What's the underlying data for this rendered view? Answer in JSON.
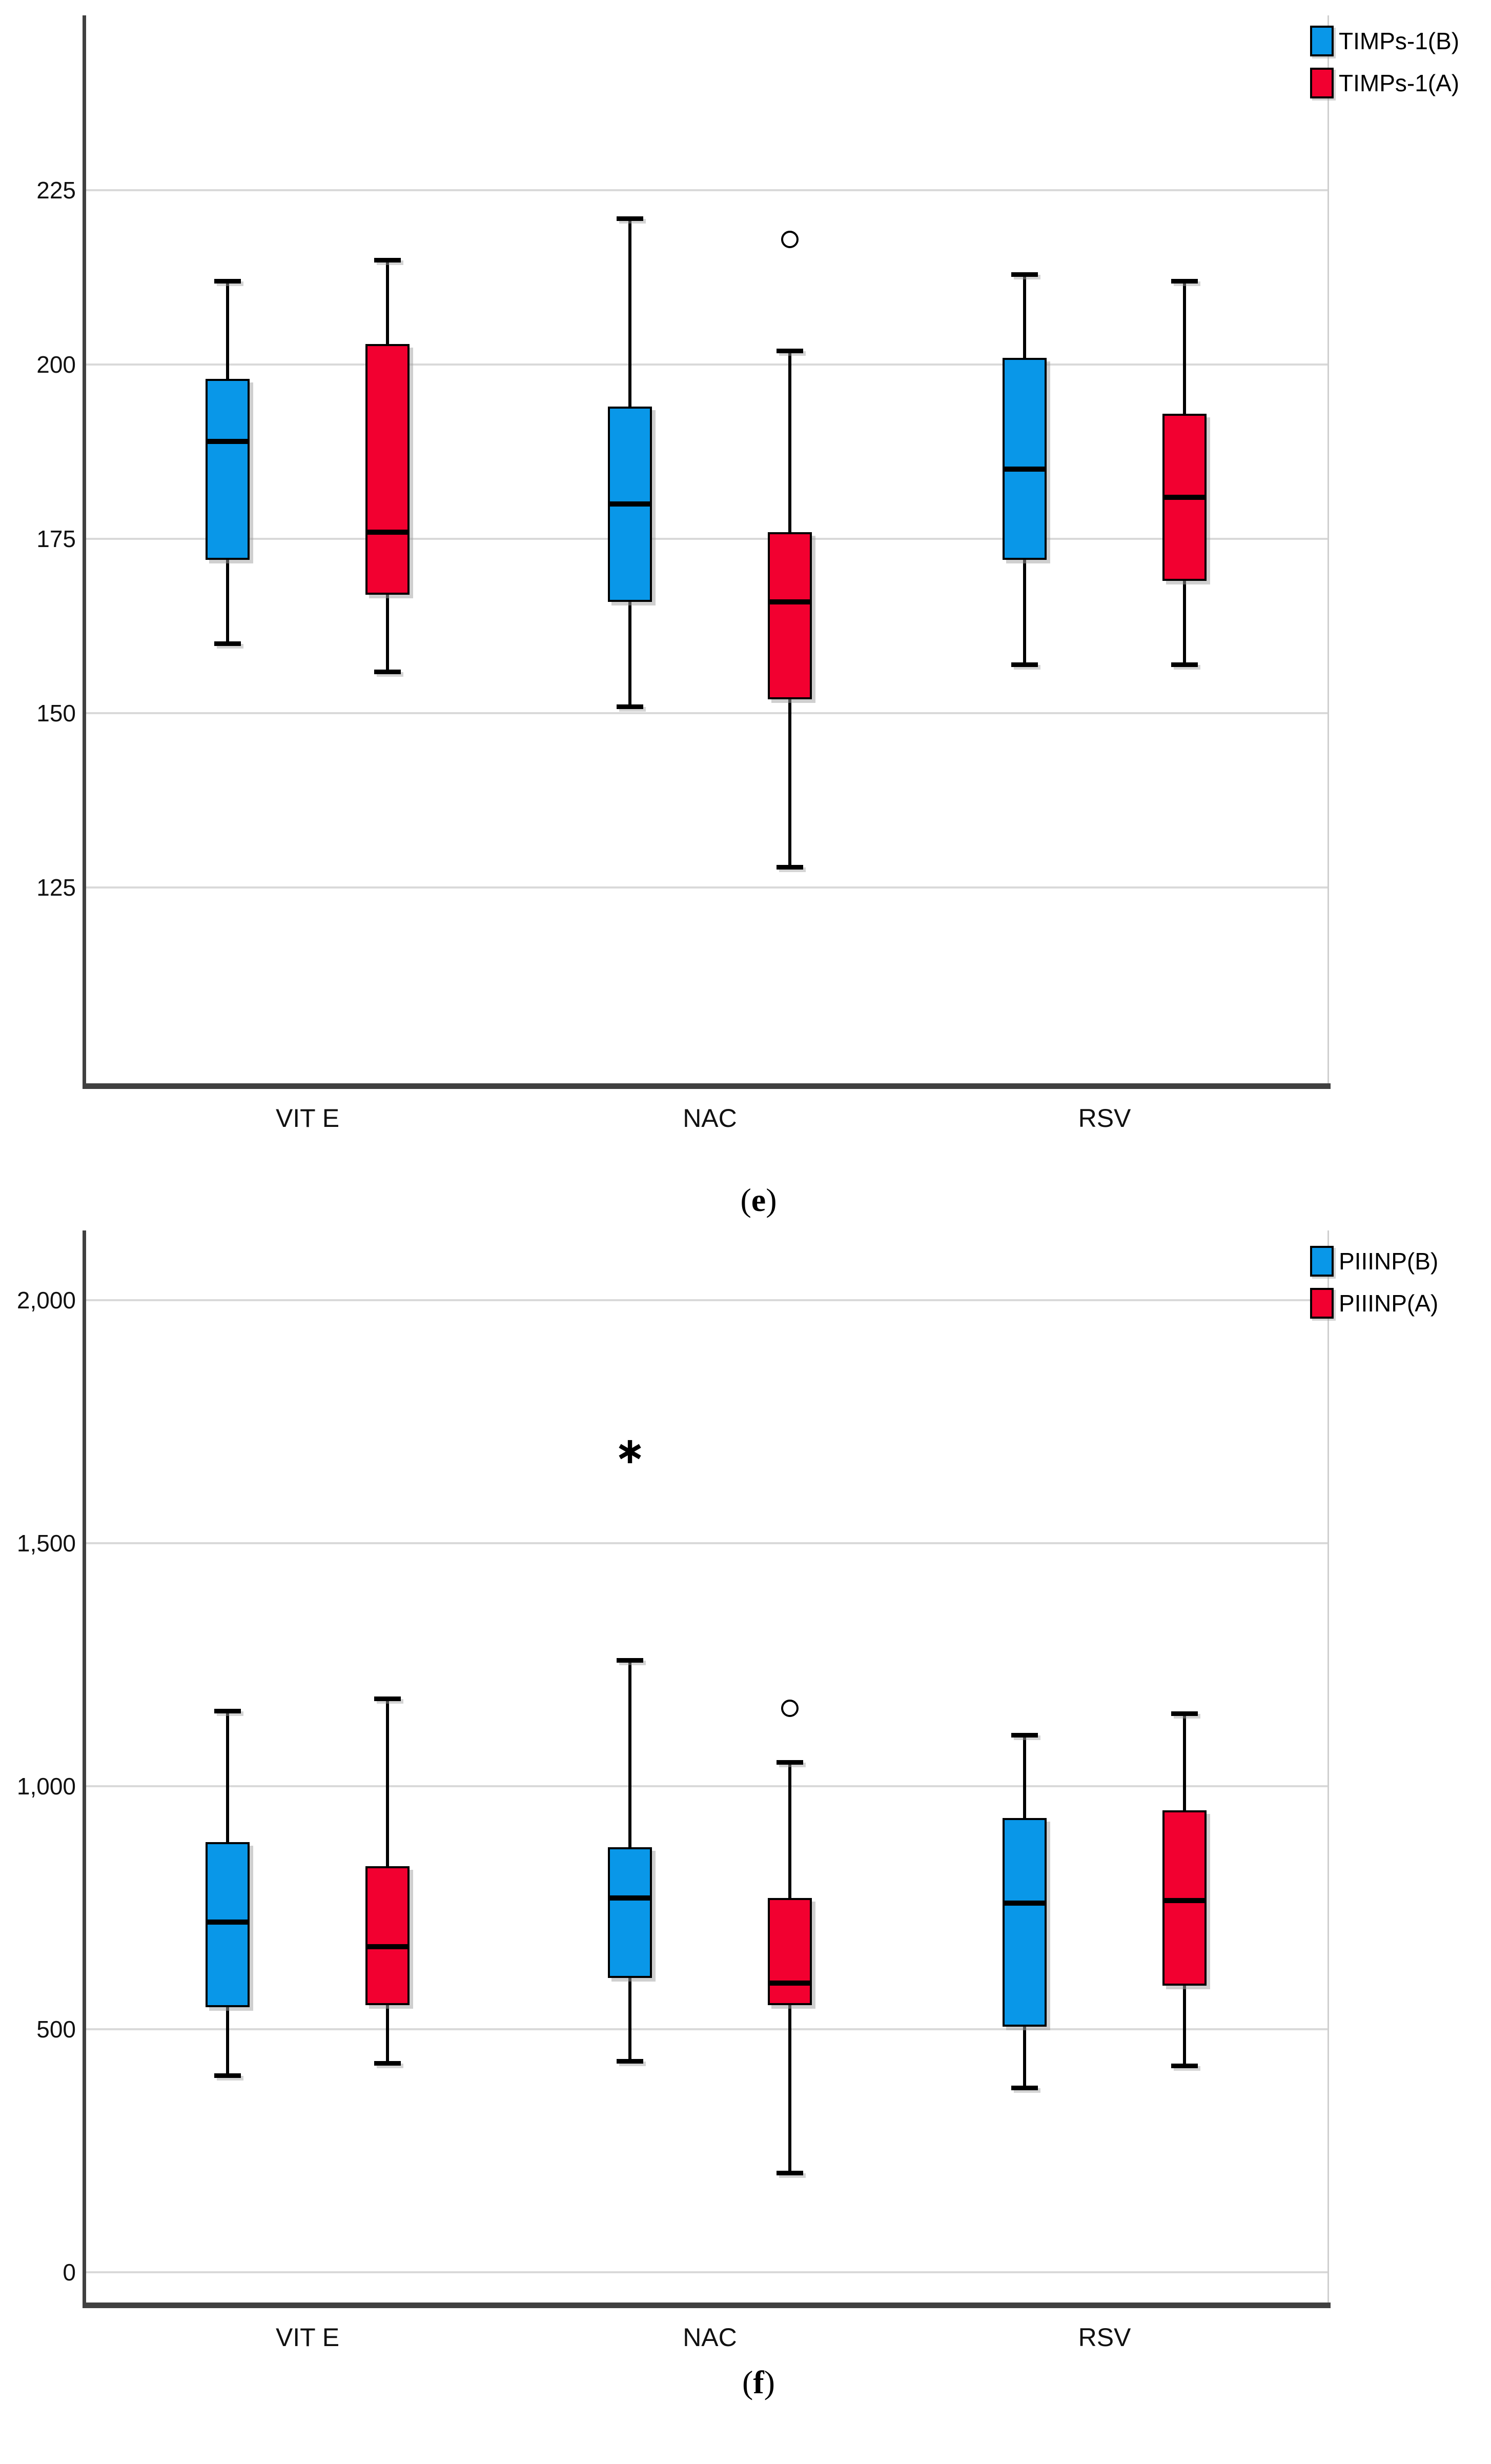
{
  "page": {
    "background": "#ffffff"
  },
  "colors": {
    "series_b": "#0997E8",
    "series_a": "#F20030",
    "grid": "#d9d9d9",
    "axis": "#404040"
  },
  "chart_data": [
    {
      "type": "boxplot",
      "title": "",
      "xlabel": "",
      "ylabel": "",
      "caption_open": "(",
      "caption_letter": "e",
      "caption_close": ")",
      "categories": [
        "VIT E",
        "NAC",
        "RSV"
      ],
      "ylim": [
        97,
        250
      ],
      "grid": true,
      "legend_position": "top-right",
      "yticks": [
        {
          "value": 225,
          "label": "225"
        },
        {
          "value": 200,
          "label": "200"
        },
        {
          "value": 175,
          "label": "175"
        },
        {
          "value": 150,
          "label": "150"
        },
        {
          "value": 125,
          "label": "125"
        }
      ],
      "series": [
        {
          "name": "TIMPs-1(B)",
          "color": "#0997E8",
          "boxes": [
            {
              "category": "VIT E",
              "low": 160,
              "q1": 172,
              "median": 189,
              "q3": 198,
              "high": 212,
              "outliers": [],
              "extremes": []
            },
            {
              "category": "NAC",
              "low": 151,
              "q1": 166,
              "median": 180,
              "q3": 194,
              "high": 221,
              "outliers": [],
              "extremes": []
            },
            {
              "category": "RSV",
              "low": 157,
              "q1": 172,
              "median": 185,
              "q3": 201,
              "high": 213,
              "outliers": [],
              "extremes": []
            }
          ]
        },
        {
          "name": "TIMPs-1(A)",
          "color": "#F20030",
          "boxes": [
            {
              "category": "VIT E",
              "low": 156,
              "q1": 167,
              "median": 176,
              "q3": 203,
              "high": 215,
              "outliers": [],
              "extremes": []
            },
            {
              "category": "NAC",
              "low": 128,
              "q1": 152,
              "median": 166,
              "q3": 176,
              "high": 202,
              "outliers": [
                218
              ],
              "extremes": []
            },
            {
              "category": "RSV",
              "low": 157,
              "q1": 169,
              "median": 181,
              "q3": 193,
              "high": 212,
              "outliers": [],
              "extremes": []
            }
          ]
        }
      ]
    },
    {
      "type": "boxplot",
      "title": "",
      "xlabel": "",
      "ylabel": "",
      "caption_open": "(",
      "caption_letter": "f",
      "caption_close": ")",
      "categories": [
        "VIT E",
        "NAC",
        "RSV"
      ],
      "ylim": [
        -61,
        2144
      ],
      "grid": true,
      "legend_position": "top-right",
      "yticks": [
        {
          "value": 2000,
          "label": "2,000"
        },
        {
          "value": 1500,
          "label": "1,500"
        },
        {
          "value": 1000,
          "label": "1,000"
        },
        {
          "value": 500,
          "label": "500"
        },
        {
          "value": 0,
          "label": "0"
        }
      ],
      "series": [
        {
          "name": "PIIINP(B)",
          "color": "#0997E8",
          "boxes": [
            {
              "category": "VIT E",
              "low": 405,
              "q1": 545,
              "median": 720,
              "q3": 885,
              "high": 1155,
              "outliers": [],
              "extremes": []
            },
            {
              "category": "NAC",
              "low": 435,
              "q1": 605,
              "median": 770,
              "q3": 875,
              "high": 1260,
              "outliers": [],
              "extremes": [
                1690
              ]
            },
            {
              "category": "RSV",
              "low": 380,
              "q1": 505,
              "median": 760,
              "q3": 935,
              "high": 1105,
              "outliers": [],
              "extremes": []
            }
          ]
        },
        {
          "name": "PIIINP(A)",
          "color": "#F20030",
          "boxes": [
            {
              "category": "VIT E",
              "low": 430,
              "q1": 550,
              "median": 670,
              "q3": 835,
              "high": 1180,
              "outliers": [],
              "extremes": []
            },
            {
              "category": "NAC",
              "low": 205,
              "q1": 550,
              "median": 595,
              "q3": 770,
              "high": 1050,
              "outliers": [
                1160
              ],
              "extremes": []
            },
            {
              "category": "RSV",
              "low": 425,
              "q1": 590,
              "median": 765,
              "q3": 950,
              "high": 1150,
              "outliers": [],
              "extremes": []
            }
          ]
        }
      ]
    }
  ]
}
